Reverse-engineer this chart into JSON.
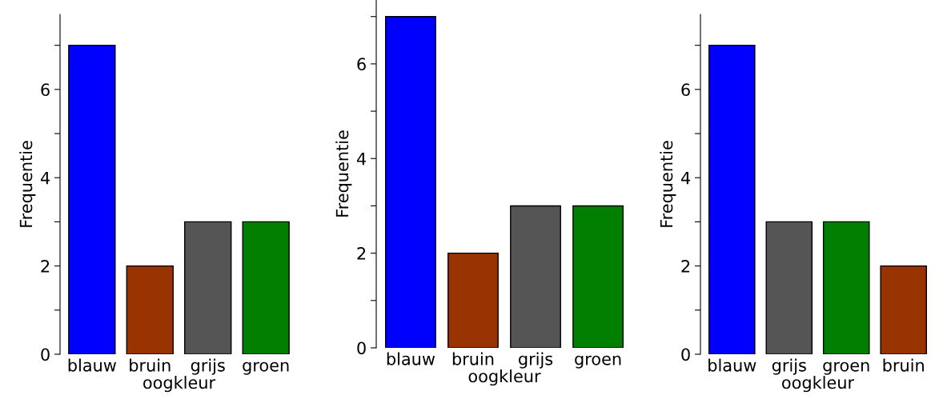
{
  "chart_data": [
    {
      "type": "bar",
      "xlabel": "oogkleur",
      "ylabel": "Frequentie",
      "categories": [
        "blauw",
        "bruin",
        "grijs",
        "groen"
      ],
      "values": [
        7,
        2,
        3,
        3
      ],
      "colors": [
        "#0000ff",
        "#993300",
        "#555555",
        "#007f00"
      ],
      "ylim": [
        0,
        7.7
      ],
      "yticks": [
        0,
        {
          "value": 1,
          "label": null
        },
        2,
        {
          "value": 3,
          "label": null
        },
        4,
        {
          "value": 5,
          "label": null
        },
        6,
        {
          "value": 7,
          "label": null
        }
      ],
      "grid": false,
      "legend": false
    },
    {
      "type": "bar",
      "xlabel": "oogkleur",
      "ylabel": "Frequentie",
      "categories": [
        "blauw",
        "bruin",
        "grijs",
        "groen"
      ],
      "values": [
        7,
        2,
        3,
        3
      ],
      "colors": [
        "#0000ff",
        "#993300",
        "#555555",
        "#007f00"
      ],
      "ylim": [
        0,
        7.35
      ],
      "yticks": [
        0,
        {
          "value": 1,
          "label": null
        },
        2,
        {
          "value": 3,
          "label": null
        },
        4,
        {
          "value": 5,
          "label": null
        },
        6,
        {
          "value": 7,
          "label": null
        }
      ],
      "grid": false,
      "legend": false
    },
    {
      "type": "bar",
      "xlabel": "oogkleur",
      "ylabel": "Frequentie",
      "categories": [
        "blauw",
        "grijs",
        "groen",
        "bruin"
      ],
      "values": [
        7,
        3,
        3,
        2
      ],
      "colors": [
        "#0000ff",
        "#555555",
        "#007f00",
        "#993300"
      ],
      "ylim": [
        0,
        7.7
      ],
      "yticks": [
        0,
        {
          "value": 1,
          "label": null
        },
        2,
        {
          "value": 3,
          "label": null
        },
        4,
        {
          "value": 5,
          "label": null
        },
        6,
        {
          "value": 7,
          "label": null
        }
      ],
      "grid": false,
      "legend": false
    }
  ]
}
